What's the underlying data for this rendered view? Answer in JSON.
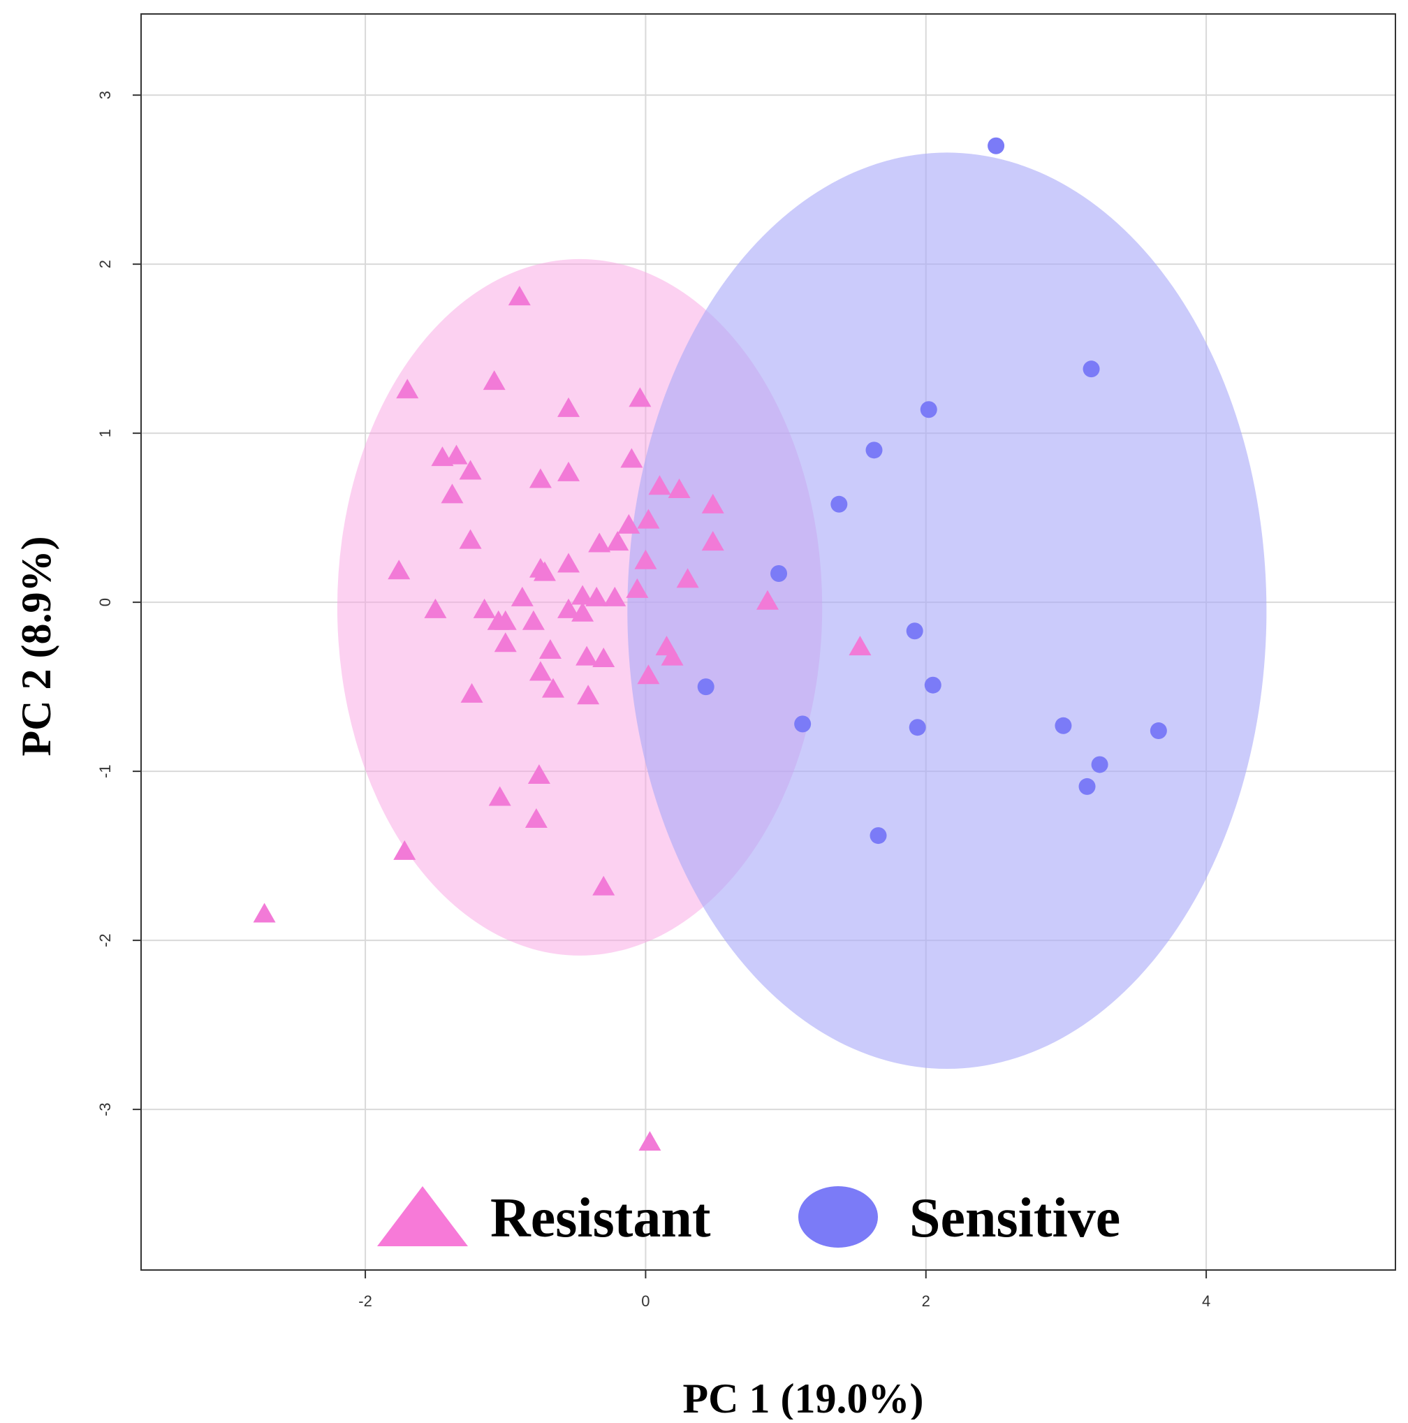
{
  "chart_data": {
    "type": "scatter",
    "title": "",
    "xlabel": "PC 1 (19.0%)",
    "ylabel": "PC 2 (8.9%)",
    "xlim": [
      -3.6,
      5.35
    ],
    "ylim": [
      -3.95,
      3.48
    ],
    "xticks": [
      -2,
      0,
      2,
      4
    ],
    "yticks": [
      -3,
      -2,
      -1,
      0,
      1,
      2,
      3
    ],
    "xtick_labels": [
      "-2",
      "0",
      "2",
      "4"
    ],
    "ytick_labels": [
      "-3",
      "-2",
      "-1",
      "0",
      "1",
      "2",
      "3"
    ],
    "grid": true,
    "legend": {
      "position": "bottom-center",
      "entries": [
        {
          "label": "Resistant",
          "marker": "triangle",
          "color": "#f77ad8"
        },
        {
          "label": "Sensitive",
          "marker": "circle",
          "color": "#7b7bf7"
        }
      ]
    },
    "series": [
      {
        "name": "Resistant",
        "marker": "triangle",
        "color": "#f27ad7",
        "ellipse": {
          "cx": -0.47,
          "cy": -0.03,
          "rx": 1.73,
          "ry": 2.06,
          "fill": "#f9a3e4",
          "opacity": 0.5
        },
        "points": [
          [
            -0.9,
            1.8
          ],
          [
            -1.7,
            1.25
          ],
          [
            -1.08,
            1.3
          ],
          [
            -0.55,
            1.14
          ],
          [
            -0.04,
            1.2
          ],
          [
            -1.45,
            0.85
          ],
          [
            -1.35,
            0.86
          ],
          [
            -1.25,
            0.77
          ],
          [
            -0.75,
            0.72
          ],
          [
            -0.55,
            0.76
          ],
          [
            -0.1,
            0.84
          ],
          [
            -1.38,
            0.63
          ],
          [
            0.1,
            0.68
          ],
          [
            0.24,
            0.66
          ],
          [
            0.48,
            0.57
          ],
          [
            -0.12,
            0.45
          ],
          [
            0.02,
            0.48
          ],
          [
            -1.25,
            0.36
          ],
          [
            -0.33,
            0.34
          ],
          [
            -0.2,
            0.35
          ],
          [
            0.48,
            0.35
          ],
          [
            0.0,
            0.24
          ],
          [
            -1.76,
            0.18
          ],
          [
            -0.75,
            0.19
          ],
          [
            -0.55,
            0.22
          ],
          [
            -0.72,
            0.17
          ],
          [
            0.3,
            0.13
          ],
          [
            -0.06,
            0.07
          ],
          [
            -0.88,
            0.02
          ],
          [
            -0.45,
            0.03
          ],
          [
            -0.35,
            0.02
          ],
          [
            -0.22,
            0.02
          ],
          [
            0.87,
            0.0
          ],
          [
            -1.5,
            -0.05
          ],
          [
            -1.15,
            -0.05
          ],
          [
            -0.55,
            -0.05
          ],
          [
            -0.45,
            -0.07
          ],
          [
            -1.05,
            -0.12
          ],
          [
            -1.0,
            -0.12
          ],
          [
            -0.8,
            -0.12
          ],
          [
            -1.0,
            -0.25
          ],
          [
            -0.68,
            -0.29
          ],
          [
            -0.42,
            -0.33
          ],
          [
            -0.3,
            -0.34
          ],
          [
            0.15,
            -0.27
          ],
          [
            0.19,
            -0.33
          ],
          [
            1.53,
            -0.27
          ],
          [
            -0.75,
            -0.42
          ],
          [
            0.02,
            -0.44
          ],
          [
            -0.66,
            -0.52
          ],
          [
            -1.24,
            -0.55
          ],
          [
            -0.41,
            -0.56
          ],
          [
            -0.76,
            -1.03
          ],
          [
            -1.04,
            -1.16
          ],
          [
            -0.78,
            -1.29
          ],
          [
            -1.72,
            -1.48
          ],
          [
            -0.3,
            -1.69
          ],
          [
            -2.72,
            -1.85
          ],
          [
            0.03,
            -3.2
          ]
        ]
      },
      {
        "name": "Sensitive",
        "marker": "circle",
        "color": "#7b7bf7",
        "ellipse": {
          "cx": 2.15,
          "cy": -0.05,
          "rx": 2.28,
          "ry": 2.71,
          "fill": "#a9a9f8",
          "opacity": 0.6
        },
        "points": [
          [
            2.5,
            2.7
          ],
          [
            3.18,
            1.38
          ],
          [
            2.02,
            1.14
          ],
          [
            1.63,
            0.9
          ],
          [
            1.38,
            0.58
          ],
          [
            0.95,
            0.17
          ],
          [
            1.92,
            -0.17
          ],
          [
            2.05,
            -0.49
          ],
          [
            0.43,
            -0.5
          ],
          [
            1.12,
            -0.72
          ],
          [
            1.94,
            -0.74
          ],
          [
            2.98,
            -0.73
          ],
          [
            3.66,
            -0.76
          ],
          [
            3.24,
            -0.96
          ],
          [
            3.15,
            -1.09
          ],
          [
            1.66,
            -1.38
          ]
        ]
      }
    ]
  }
}
